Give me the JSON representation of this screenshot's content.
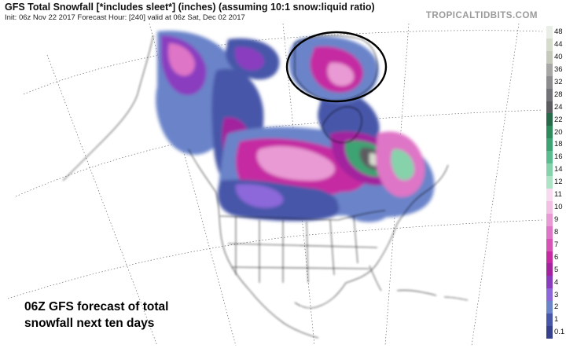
{
  "header": {
    "title": "GFS Total Snowfall [*includes sleet*] (inches) (assuming 10:1 snow:liquid ratio)",
    "subtitle": "Init: 06z Nov 22 2017   Forecast Hour: [240]   valid at 06z Sat, Dec 02 2017",
    "brand": "TROPICALTIDBITS.COM"
  },
  "caption": {
    "line1": "06Z GFS forecast of total",
    "line2": "snowfall next ten days"
  },
  "legend": [
    {
      "label": "48",
      "color": "#e9efe6"
    },
    {
      "label": "44",
      "color": "#d5dccc"
    },
    {
      "label": "40",
      "color": "#c4c9bb"
    },
    {
      "label": "36",
      "color": "#a7a8a5"
    },
    {
      "label": "32",
      "color": "#8c8c8f"
    },
    {
      "label": "28",
      "color": "#727378"
    },
    {
      "label": "24",
      "color": "#5b5c60"
    },
    {
      "label": "22",
      "color": "#266a49"
    },
    {
      "label": "20",
      "color": "#2d8b5b"
    },
    {
      "label": "18",
      "color": "#3ea372"
    },
    {
      "label": "16",
      "color": "#5bbd8f"
    },
    {
      "label": "14",
      "color": "#86d2ab"
    },
    {
      "label": "12",
      "color": "#aee3c5"
    },
    {
      "label": "11",
      "color": "#f8dbee"
    },
    {
      "label": "10",
      "color": "#f2c0e2"
    },
    {
      "label": "9",
      "color": "#e99ad4"
    },
    {
      "label": "8",
      "color": "#df75c6"
    },
    {
      "label": "7",
      "color": "#d653b6"
    },
    {
      "label": "6",
      "color": "#c52aa2"
    },
    {
      "label": "5",
      "color": "#a3239e"
    },
    {
      "label": "4",
      "color": "#8a3cbf"
    },
    {
      "label": "3",
      "color": "#8c67da"
    },
    {
      "label": "2",
      "color": "#6a83c9"
    },
    {
      "label": "1",
      "color": "#4756a9"
    },
    {
      "label": "0.1",
      "color": "#37408d"
    }
  ]
}
